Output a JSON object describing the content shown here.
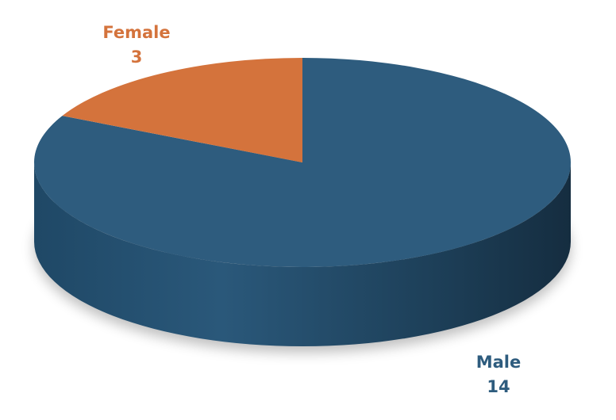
{
  "chart_data": {
    "type": "pie",
    "categories": [
      "Male",
      "Female"
    ],
    "values": [
      14,
      3
    ],
    "colors": [
      "#2e5c7e",
      "#d4733c"
    ]
  }
}
